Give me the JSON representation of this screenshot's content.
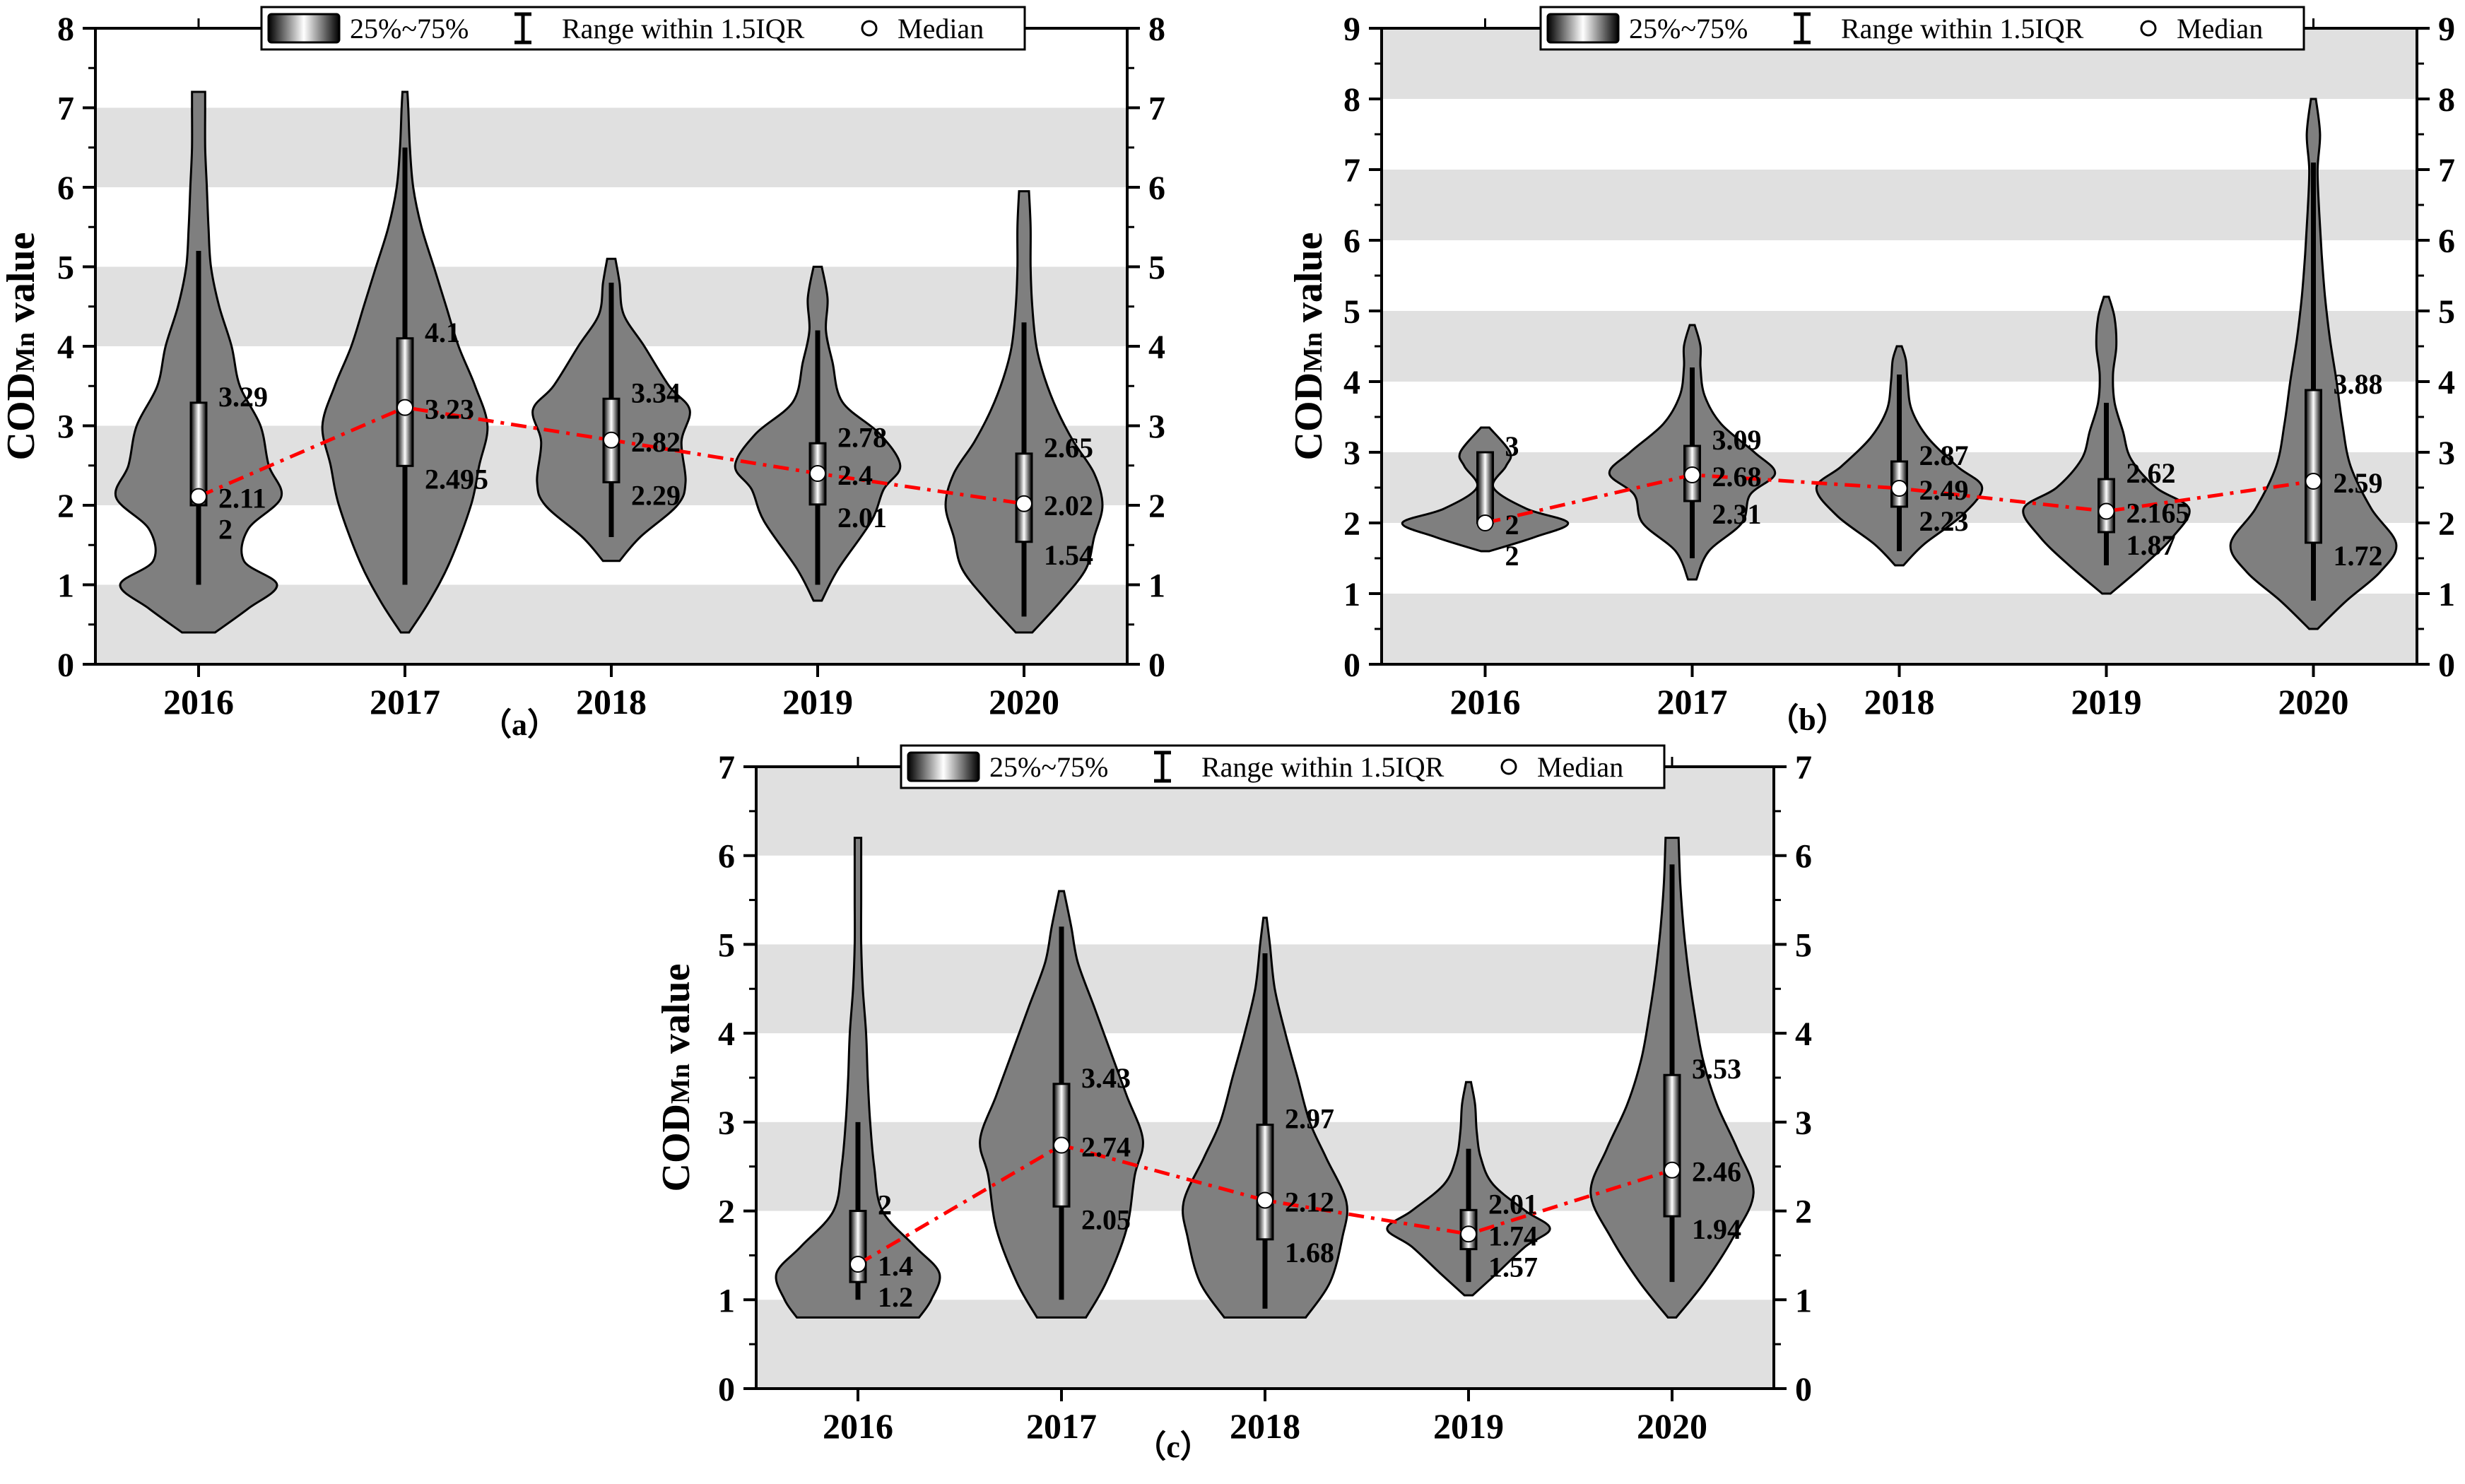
{
  "legend": {
    "iqr_label": "25%~75%",
    "range_label": "Range within 1.5IQR",
    "median_label": "Median"
  },
  "ylabel": {
    "main": "COD",
    "sub": "Mn",
    "suffix": " value"
  },
  "colors": {
    "violin_fill": "#7f7f7f",
    "band": "#e0e0e0",
    "trend": "#ff0000",
    "median_marker": "#ffffff"
  },
  "chart_data": [
    {
      "panel": "（a）",
      "type": "violin",
      "categories": [
        "2016",
        "2017",
        "2018",
        "2019",
        "2020"
      ],
      "ylim": [
        0,
        8
      ],
      "yticks": [
        0,
        1,
        2,
        3,
        4,
        5,
        6,
        7,
        8
      ],
      "shaded_bands": [
        [
          0,
          1
        ],
        [
          2,
          3
        ],
        [
          4,
          5
        ],
        [
          6,
          7
        ]
      ],
      "ylabel_shown": true,
      "violins": [
        {
          "q1": 2.0,
          "median": 2.11,
          "q3": 3.29,
          "whisker_low": 1.0,
          "whisker_high": 5.2,
          "min": 0.4,
          "max": 7.2,
          "labels": {
            "q3": "3.29",
            "median": "2.11",
            "q1": "2"
          },
          "profile": [
            [
              0.4,
              0.2
            ],
            [
              0.7,
              0.6
            ],
            [
              1.0,
              0.95
            ],
            [
              1.3,
              0.55
            ],
            [
              1.7,
              0.6
            ],
            [
              2.1,
              1.0
            ],
            [
              2.5,
              0.85
            ],
            [
              3.0,
              0.75
            ],
            [
              3.5,
              0.5
            ],
            [
              4.0,
              0.4
            ],
            [
              4.5,
              0.25
            ],
            [
              5.0,
              0.15
            ],
            [
              5.5,
              0.12
            ],
            [
              6.0,
              0.1
            ],
            [
              6.5,
              0.08
            ],
            [
              7.0,
              0.08
            ],
            [
              7.2,
              0.08
            ]
          ]
        },
        {
          "q1": 2.495,
          "median": 3.23,
          "q3": 4.1,
          "whisker_low": 1.0,
          "whisker_high": 6.5,
          "min": 0.4,
          "max": 7.2,
          "labels": {
            "q3": "4.1",
            "median": "3.23",
            "q1": "2.495"
          },
          "profile": [
            [
              0.4,
              0.05
            ],
            [
              0.8,
              0.3
            ],
            [
              1.3,
              0.55
            ],
            [
              2.0,
              0.8
            ],
            [
              2.5,
              0.9
            ],
            [
              3.0,
              1.0
            ],
            [
              3.5,
              0.85
            ],
            [
              4.0,
              0.65
            ],
            [
              4.5,
              0.5
            ],
            [
              5.0,
              0.35
            ],
            [
              5.5,
              0.2
            ],
            [
              6.0,
              0.1
            ],
            [
              6.5,
              0.06
            ],
            [
              7.0,
              0.04
            ],
            [
              7.2,
              0.03
            ]
          ]
        },
        {
          "q1": 2.29,
          "median": 2.82,
          "q3": 3.34,
          "whisker_low": 1.6,
          "whisker_high": 4.8,
          "min": 1.3,
          "max": 5.1,
          "labels": {
            "q3": "3.34",
            "median": "2.82",
            "q1": "2.29"
          },
          "profile": [
            [
              1.3,
              0.1
            ],
            [
              1.6,
              0.35
            ],
            [
              2.0,
              0.8
            ],
            [
              2.3,
              0.9
            ],
            [
              2.8,
              0.85
            ],
            [
              3.2,
              0.95
            ],
            [
              3.5,
              0.7
            ],
            [
              4.0,
              0.4
            ],
            [
              4.4,
              0.15
            ],
            [
              4.8,
              0.1
            ],
            [
              5.1,
              0.05
            ]
          ]
        },
        {
          "q1": 2.01,
          "median": 2.4,
          "q3": 2.78,
          "whisker_low": 1.0,
          "whisker_high": 4.2,
          "min": 0.8,
          "max": 5.0,
          "labels": {
            "q3": "2.78",
            "median": "2.4",
            "q1": "2.01"
          },
          "profile": [
            [
              0.8,
              0.05
            ],
            [
              1.2,
              0.25
            ],
            [
              1.8,
              0.65
            ],
            [
              2.2,
              0.8
            ],
            [
              2.5,
              1.0
            ],
            [
              2.9,
              0.75
            ],
            [
              3.3,
              0.3
            ],
            [
              3.8,
              0.18
            ],
            [
              4.2,
              0.1
            ],
            [
              4.6,
              0.12
            ],
            [
              5.0,
              0.05
            ]
          ]
        },
        {
          "q1": 1.54,
          "median": 2.02,
          "q3": 2.65,
          "whisker_low": 0.6,
          "whisker_high": 4.3,
          "min": 0.4,
          "max": 5.95,
          "labels": {
            "q3": "2.65",
            "median": "2.02",
            "q1": "1.54"
          },
          "profile": [
            [
              0.4,
              0.1
            ],
            [
              0.8,
              0.45
            ],
            [
              1.2,
              0.75
            ],
            [
              1.6,
              0.85
            ],
            [
              2.0,
              0.95
            ],
            [
              2.4,
              0.85
            ],
            [
              2.8,
              0.6
            ],
            [
              3.2,
              0.4
            ],
            [
              3.6,
              0.25
            ],
            [
              4.0,
              0.15
            ],
            [
              4.5,
              0.1
            ],
            [
              5.0,
              0.08
            ],
            [
              5.5,
              0.08
            ],
            [
              5.95,
              0.06
            ]
          ]
        }
      ],
      "trend_medians": [
        2.11,
        3.23,
        2.82,
        2.4,
        2.02
      ]
    },
    {
      "panel": "（b）",
      "type": "violin",
      "categories": [
        "2016",
        "2017",
        "2018",
        "2019",
        "2020"
      ],
      "ylim": [
        0,
        9
      ],
      "yticks": [
        0,
        1,
        2,
        3,
        4,
        5,
        6,
        7,
        8,
        9
      ],
      "shaded_bands": [
        [
          0,
          1
        ],
        [
          2,
          3
        ],
        [
          4,
          5
        ],
        [
          6,
          7
        ],
        [
          8,
          9
        ]
      ],
      "ylabel_shown": true,
      "violins": [
        {
          "q1": 2.0,
          "median": 2.0,
          "q3": 3.0,
          "whisker_low": 2.0,
          "whisker_high": 3.0,
          "min": 1.6,
          "max": 3.35,
          "labels": {
            "q3": "3",
            "median": "2",
            "q1": "2"
          },
          "profile": [
            [
              1.6,
              0.05
            ],
            [
              1.8,
              0.6
            ],
            [
              2.0,
              1.0
            ],
            [
              2.2,
              0.5
            ],
            [
              2.5,
              0.1
            ],
            [
              2.8,
              0.25
            ],
            [
              3.0,
              0.3
            ],
            [
              3.35,
              0.05
            ]
          ]
        },
        {
          "q1": 2.31,
          "median": 2.68,
          "q3": 3.09,
          "whisker_low": 1.5,
          "whisker_high": 4.2,
          "min": 1.2,
          "max": 4.8,
          "labels": {
            "q3": "3.09",
            "median": "2.68",
            "q1": "2.31"
          },
          "profile": [
            [
              1.2,
              0.05
            ],
            [
              1.6,
              0.2
            ],
            [
              2.0,
              0.6
            ],
            [
              2.4,
              0.7
            ],
            [
              2.7,
              1.0
            ],
            [
              3.0,
              0.75
            ],
            [
              3.4,
              0.35
            ],
            [
              3.8,
              0.15
            ],
            [
              4.2,
              0.1
            ],
            [
              4.5,
              0.1
            ],
            [
              4.8,
              0.03
            ]
          ]
        },
        {
          "q1": 2.23,
          "median": 2.49,
          "q3": 2.87,
          "whisker_low": 1.6,
          "whisker_high": 4.1,
          "min": 1.4,
          "max": 4.5,
          "labels": {
            "q3": "2.87",
            "median": "2.49",
            "q1": "2.23"
          },
          "profile": [
            [
              1.4,
              0.05
            ],
            [
              1.7,
              0.3
            ],
            [
              2.1,
              0.75
            ],
            [
              2.5,
              1.0
            ],
            [
              2.8,
              0.7
            ],
            [
              3.2,
              0.35
            ],
            [
              3.6,
              0.15
            ],
            [
              4.0,
              0.1
            ],
            [
              4.3,
              0.08
            ],
            [
              4.5,
              0.03
            ]
          ]
        },
        {
          "q1": 1.87,
          "median": 2.165,
          "q3": 2.62,
          "whisker_low": 1.4,
          "whisker_high": 3.7,
          "min": 1.0,
          "max": 5.2,
          "labels": {
            "q3": "2.62",
            "median": "2.165",
            "q1": "1.87"
          },
          "profile": [
            [
              1.0,
              0.05
            ],
            [
              1.4,
              0.45
            ],
            [
              1.8,
              0.8
            ],
            [
              2.2,
              1.0
            ],
            [
              2.5,
              0.6
            ],
            [
              2.9,
              0.3
            ],
            [
              3.3,
              0.2
            ],
            [
              3.7,
              0.1
            ],
            [
              4.1,
              0.08
            ],
            [
              4.5,
              0.12
            ],
            [
              4.9,
              0.1
            ],
            [
              5.2,
              0.03
            ]
          ]
        },
        {
          "q1": 1.72,
          "median": 2.59,
          "q3": 3.88,
          "whisker_low": 0.9,
          "whisker_high": 7.1,
          "min": 0.5,
          "max": 8.0,
          "labels": {
            "q3": "3.88",
            "median": "2.59",
            "q1": "1.72"
          },
          "profile": [
            [
              0.5,
              0.05
            ],
            [
              0.9,
              0.4
            ],
            [
              1.3,
              0.8
            ],
            [
              1.7,
              1.0
            ],
            [
              2.2,
              0.7
            ],
            [
              2.8,
              0.45
            ],
            [
              3.4,
              0.35
            ],
            [
              4.0,
              0.28
            ],
            [
              4.6,
              0.2
            ],
            [
              5.2,
              0.14
            ],
            [
              5.8,
              0.1
            ],
            [
              6.4,
              0.07
            ],
            [
              7.0,
              0.05
            ],
            [
              7.5,
              0.08
            ],
            [
              8.0,
              0.03
            ]
          ]
        }
      ],
      "trend_medians": [
        2.0,
        2.68,
        2.49,
        2.165,
        2.59
      ]
    },
    {
      "panel": "（c）",
      "type": "violin",
      "categories": [
        "2016",
        "2017",
        "2018",
        "2019",
        "2020"
      ],
      "ylim": [
        0,
        7
      ],
      "yticks": [
        0,
        1,
        2,
        3,
        4,
        5,
        6,
        7
      ],
      "shaded_bands": [
        [
          0,
          1
        ],
        [
          2,
          3
        ],
        [
          4,
          5
        ],
        [
          6,
          7
        ]
      ],
      "ylabel_shown": true,
      "violins": [
        {
          "q1": 1.2,
          "median": 1.4,
          "q3": 2.0,
          "whisker_low": 1.0,
          "whisker_high": 3.0,
          "min": 0.8,
          "max": 6.2,
          "labels": {
            "q3": "2",
            "median": "1.4",
            "q1": "1.2"
          },
          "profile": [
            [
              0.8,
              0.75
            ],
            [
              1.0,
              0.9
            ],
            [
              1.3,
              1.0
            ],
            [
              1.6,
              0.7
            ],
            [
              2.0,
              0.3
            ],
            [
              2.5,
              0.2
            ],
            [
              3.0,
              0.15
            ],
            [
              3.5,
              0.12
            ],
            [
              4.0,
              0.1
            ],
            [
              4.5,
              0.06
            ],
            [
              5.0,
              0.04
            ],
            [
              5.5,
              0.04
            ],
            [
              6.0,
              0.04
            ],
            [
              6.2,
              0.04
            ]
          ]
        },
        {
          "q1": 2.05,
          "median": 2.74,
          "q3": 3.43,
          "whisker_low": 1.0,
          "whisker_high": 5.2,
          "min": 0.8,
          "max": 5.6,
          "labels": {
            "q3": "3.43",
            "median": "2.74",
            "q1": "2.05"
          },
          "profile": [
            [
              0.8,
              0.3
            ],
            [
              1.2,
              0.55
            ],
            [
              1.8,
              0.8
            ],
            [
              2.4,
              0.9
            ],
            [
              2.8,
              1.0
            ],
            [
              3.3,
              0.8
            ],
            [
              3.8,
              0.6
            ],
            [
              4.3,
              0.4
            ],
            [
              4.8,
              0.2
            ],
            [
              5.2,
              0.12
            ],
            [
              5.6,
              0.03
            ]
          ]
        },
        {
          "q1": 1.68,
          "median": 2.12,
          "q3": 2.97,
          "whisker_low": 0.9,
          "whisker_high": 4.9,
          "min": 0.8,
          "max": 5.3,
          "labels": {
            "q3": "2.97",
            "median": "2.12",
            "q1": "1.68"
          },
          "profile": [
            [
              0.8,
              0.5
            ],
            [
              1.2,
              0.8
            ],
            [
              1.7,
              0.95
            ],
            [
              2.1,
              1.0
            ],
            [
              2.6,
              0.75
            ],
            [
              3.0,
              0.55
            ],
            [
              3.5,
              0.4
            ],
            [
              4.0,
              0.25
            ],
            [
              4.5,
              0.12
            ],
            [
              5.0,
              0.06
            ],
            [
              5.3,
              0.02
            ]
          ]
        },
        {
          "q1": 1.57,
          "median": 1.74,
          "q3": 2.01,
          "whisker_low": 1.2,
          "whisker_high": 2.7,
          "min": 1.05,
          "max": 3.45,
          "labels": {
            "q3": "2.01",
            "median": "1.74",
            "q1": "1.57"
          },
          "profile": [
            [
              1.05,
              0.05
            ],
            [
              1.3,
              0.35
            ],
            [
              1.6,
              0.7
            ],
            [
              1.8,
              1.0
            ],
            [
              2.0,
              0.7
            ],
            [
              2.3,
              0.3
            ],
            [
              2.6,
              0.15
            ],
            [
              2.9,
              0.1
            ],
            [
              3.2,
              0.08
            ],
            [
              3.45,
              0.03
            ]
          ]
        },
        {
          "q1": 1.94,
          "median": 2.46,
          "q3": 3.53,
          "whisker_low": 1.2,
          "whisker_high": 5.9,
          "min": 0.8,
          "max": 6.2,
          "labels": {
            "q3": "3.53",
            "median": "2.46",
            "q1": "1.94"
          },
          "profile": [
            [
              0.8,
              0.05
            ],
            [
              1.2,
              0.4
            ],
            [
              1.7,
              0.75
            ],
            [
              2.2,
              1.0
            ],
            [
              2.7,
              0.8
            ],
            [
              3.2,
              0.55
            ],
            [
              3.7,
              0.38
            ],
            [
              4.2,
              0.28
            ],
            [
              4.7,
              0.2
            ],
            [
              5.2,
              0.14
            ],
            [
              5.7,
              0.1
            ],
            [
              6.2,
              0.08
            ]
          ]
        }
      ],
      "trend_medians": [
        1.4,
        2.74,
        2.12,
        1.74,
        2.46
      ]
    }
  ]
}
